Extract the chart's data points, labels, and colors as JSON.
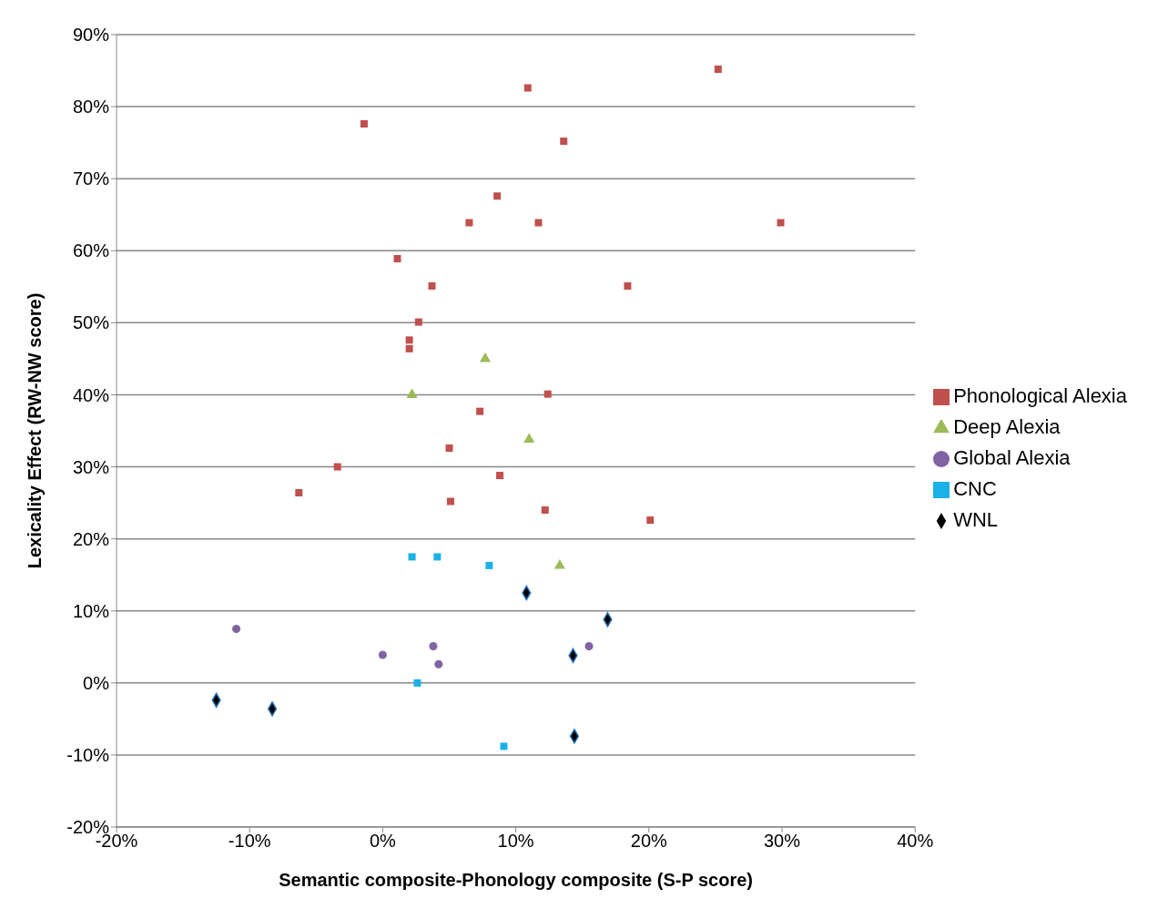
{
  "chart_data": {
    "type": "scatter",
    "xlabel": "Semantic composite-Phonology composite (S-P score)",
    "ylabel": "Lexicality Effect (RW-NW score)",
    "xlim": [
      -20,
      40
    ],
    "xticks": [
      {
        "value": -20,
        "label": "-20%"
      },
      {
        "value": -10,
        "label": "-10%"
      },
      {
        "value": 0,
        "label": "0%"
      },
      {
        "value": 10,
        "label": "10%"
      },
      {
        "value": 20,
        "label": "20%"
      },
      {
        "value": 30,
        "label": "30%"
      },
      {
        "value": 40,
        "label": "40%"
      }
    ],
    "ylim": [
      -20,
      90
    ],
    "yticks": [
      {
        "value": -20,
        "label": "-20%"
      },
      {
        "value": -10,
        "label": "-10%"
      },
      {
        "value": 0,
        "label": "0%"
      },
      {
        "value": 10,
        "label": "10%"
      },
      {
        "value": 20,
        "label": "20%"
      },
      {
        "value": 30,
        "label": "30%"
      },
      {
        "value": 40,
        "label": "40%"
      },
      {
        "value": 50,
        "label": "50%"
      },
      {
        "value": 60,
        "label": "60%"
      },
      {
        "value": 70,
        "label": "70%"
      },
      {
        "value": 80,
        "label": "80%"
      },
      {
        "value": 90,
        "label": "90%"
      }
    ],
    "grid": "y",
    "legend": "right",
    "series": [
      {
        "name": "Phonological Alexia",
        "color": "#c0504d",
        "marker": "square",
        "x": [
          25.2,
          10.9,
          -1.4,
          13.6,
          8.6,
          6.5,
          11.7,
          29.9,
          1.1,
          3.7,
          18.4,
          2.7,
          2.0,
          2.0,
          12.4,
          7.3,
          5.0,
          -3.4,
          8.8,
          -6.3,
          5.1,
          12.2,
          20.1
        ],
        "values": [
          85.2,
          82.6,
          77.6,
          75.2,
          67.6,
          63.9,
          63.9,
          63.9,
          58.9,
          55.1,
          55.1,
          50.1,
          47.6,
          46.4,
          40.1,
          37.7,
          32.6,
          30.0,
          28.8,
          26.4,
          25.2,
          24.0,
          22.6
        ]
      },
      {
        "name": "Deep Alexia",
        "color": "#9bbb59",
        "marker": "triangle",
        "x": [
          7.7,
          2.2,
          11.0,
          13.3
        ],
        "values": [
          45.0,
          40.0,
          33.8,
          16.3
        ]
      },
      {
        "name": "Global Alexia",
        "color": "#8064a2",
        "marker": "circle",
        "x": [
          -11.0,
          0,
          3.8,
          4.2,
          15.5
        ],
        "values": [
          7.5,
          3.9,
          5.1,
          2.6,
          5.1
        ]
      },
      {
        "name": "CNC",
        "color": "#1ab0e8",
        "marker": "square",
        "x": [
          2.2,
          4.1,
          8.0,
          2.6,
          9.1
        ],
        "values": [
          17.5,
          17.5,
          16.3,
          0,
          -8.8
        ]
      },
      {
        "name": "WNL",
        "color": "#000000",
        "marker": "diamond",
        "x": [
          -12.5,
          -8.3,
          10.8,
          16.9,
          14.3,
          14.4
        ],
        "values": [
          -2.4,
          -3.6,
          12.5,
          8.8,
          3.8,
          -7.4
        ]
      }
    ]
  }
}
